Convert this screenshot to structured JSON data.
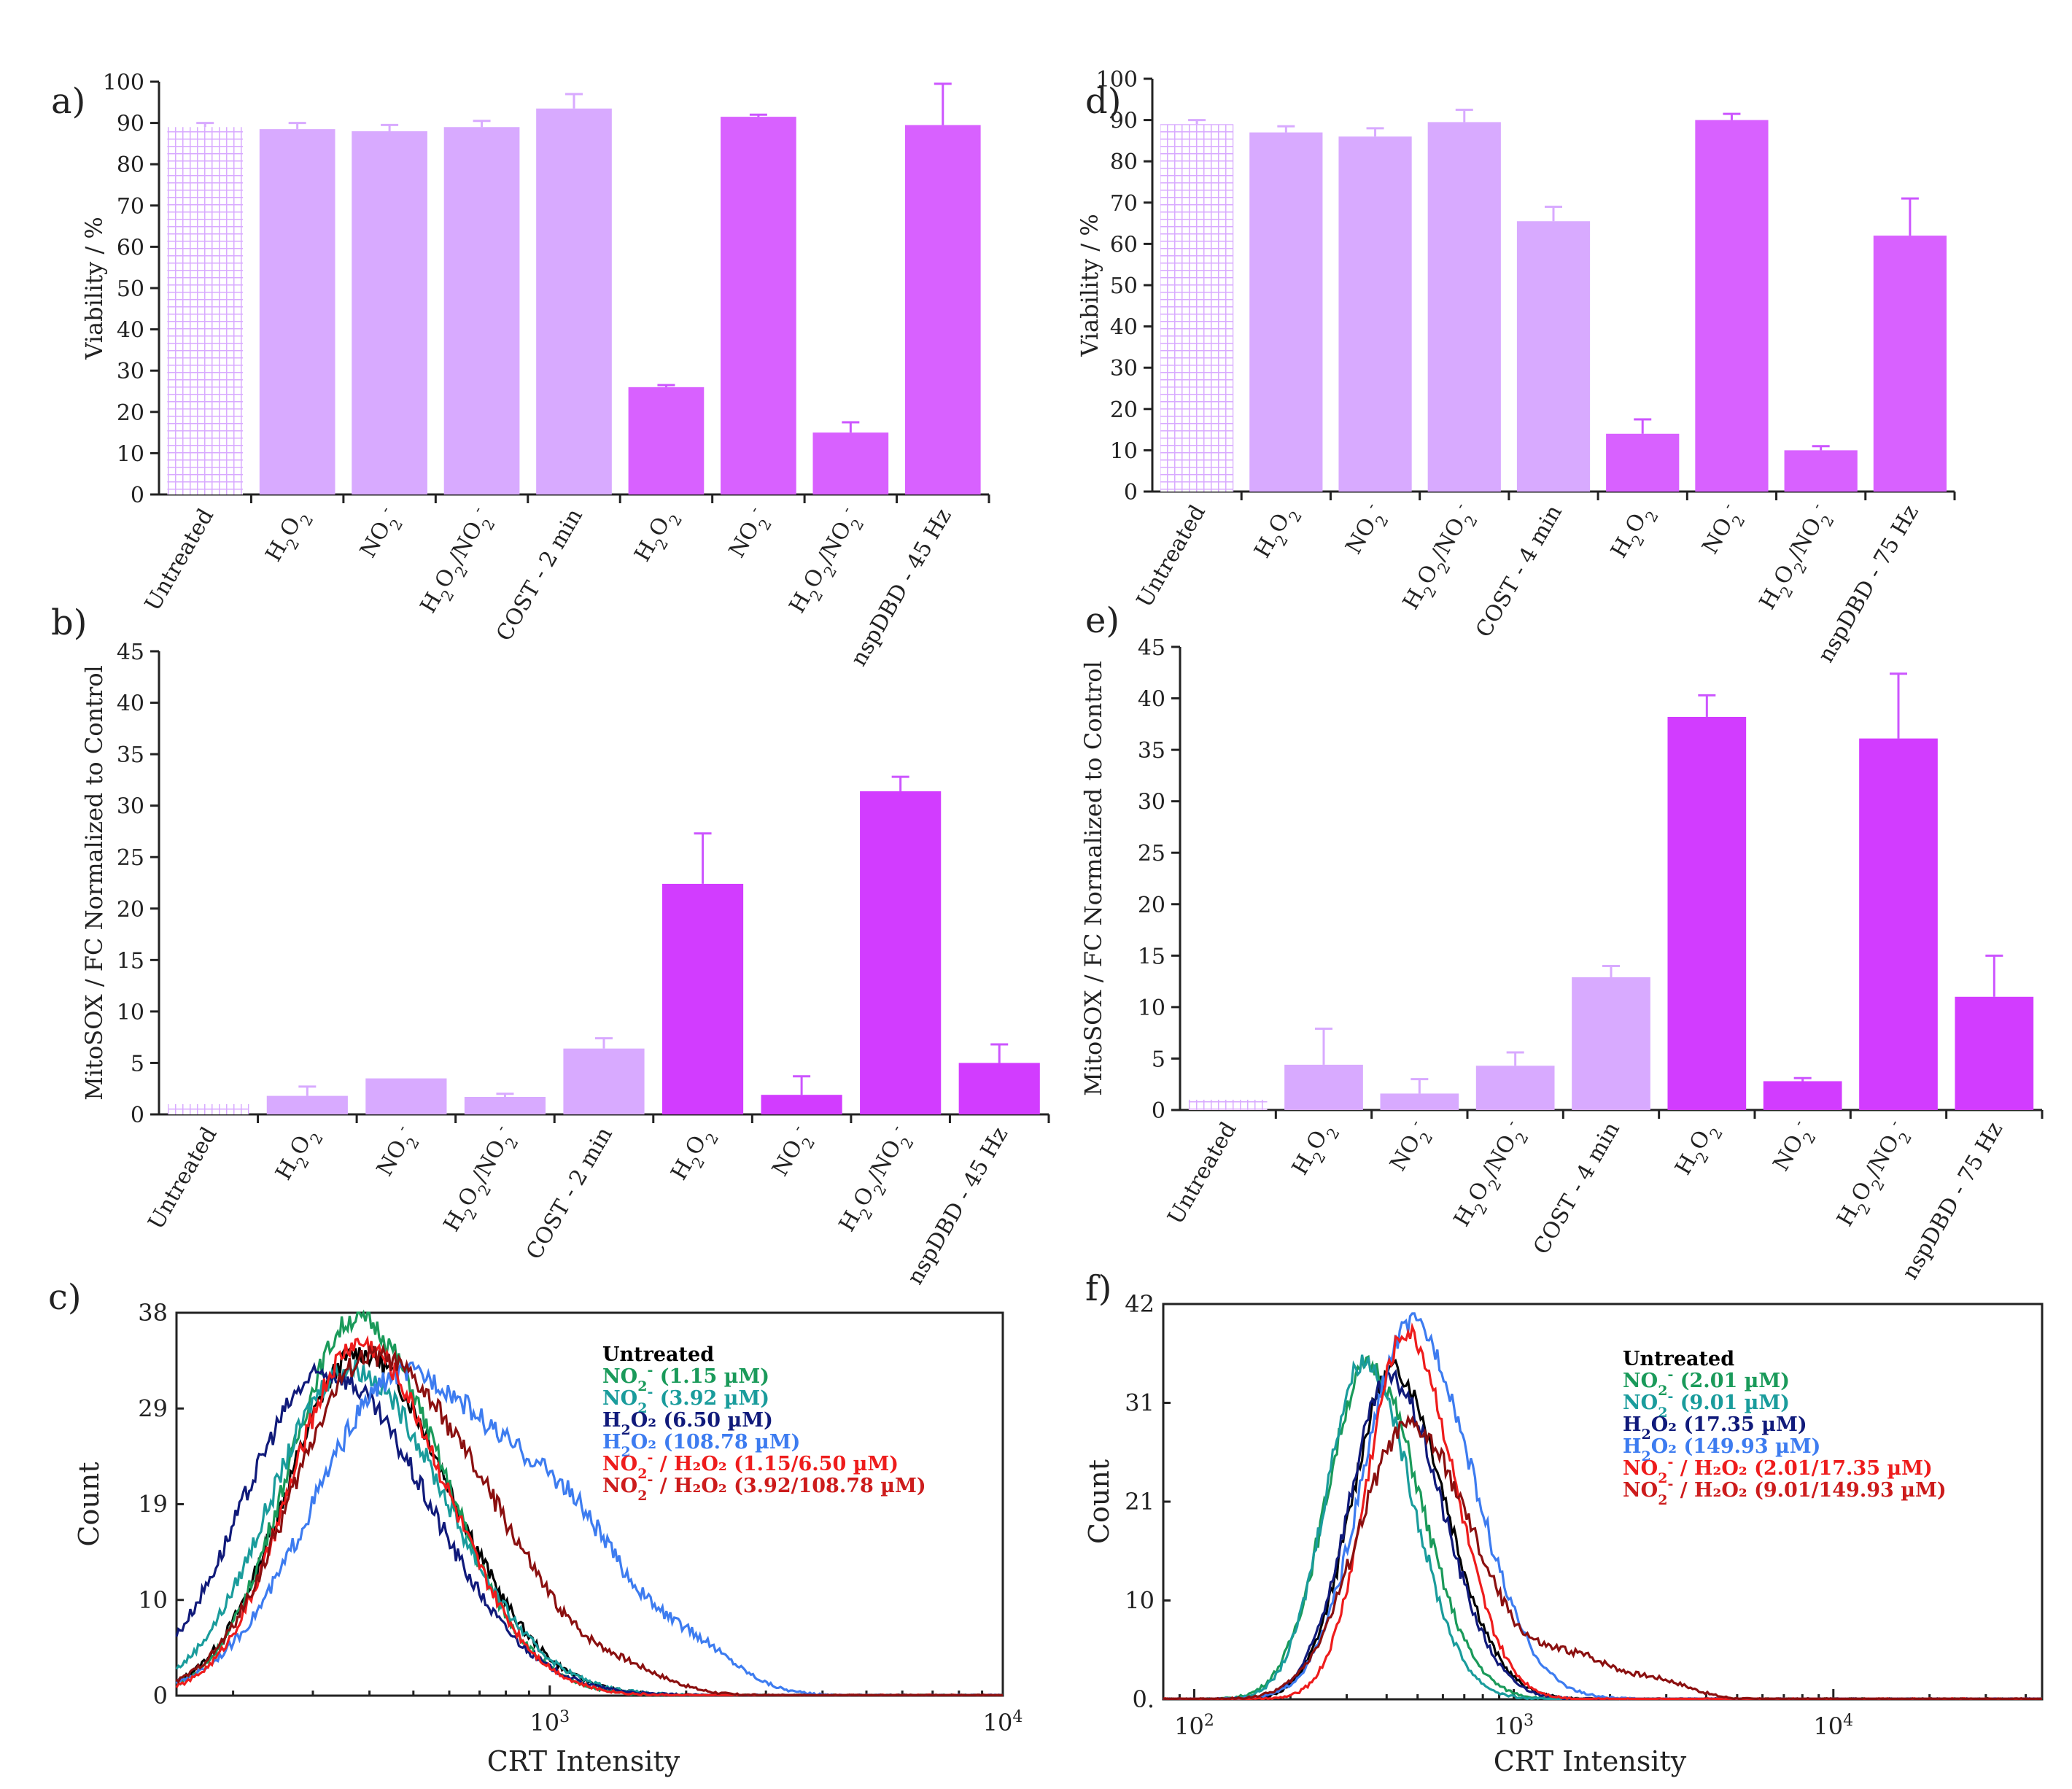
{
  "colors": {
    "bar_light": "#d8aaff",
    "bar_strong": "#d861ff",
    "bar_vivid": "#d23cff",
    "hatch_fill": "#ffffff",
    "error_bar": "#cc55ff",
    "untreated": "#000000",
    "no2_low": "#1a9a5a",
    "no2_high": "#1a9c9c",
    "h2o2_low": "#101a7a",
    "h2o2_high": "#3d7cf0",
    "combo_low": "#ee1c1c",
    "combo_high": "#cc1c1c",
    "combo_high_line": "#8b1010"
  },
  "chart_data": [
    {
      "panel": "a)",
      "type": "bar",
      "ylabel": "Viability / %",
      "ylim": [
        0,
        100
      ],
      "yticks": [
        "0",
        "10",
        "20",
        "30",
        "40",
        "50",
        "60",
        "70",
        "80",
        "90",
        "100"
      ],
      "categories": [
        "Untreated",
        "H2O2",
        "NO2-",
        "H2O2/NO2-",
        "COST - 2 min",
        "H2O2",
        "NO2-",
        "H2O2/NO2-",
        "nspDBD - 45 Hz"
      ],
      "values": [
        89,
        88.5,
        88,
        89,
        93.5,
        26,
        91.5,
        15,
        89.5
      ],
      "errors": [
        1,
        1.5,
        1.5,
        1.5,
        3.5,
        0.5,
        0.5,
        2.5,
        10
      ],
      "styles": [
        "hatch",
        "light",
        "light",
        "light",
        "light",
        "strong",
        "strong",
        "strong",
        "strong"
      ]
    },
    {
      "panel": "b)",
      "type": "bar",
      "ylabel": "MitoSOX / FC Normalized to Control",
      "ylim": [
        0,
        45
      ],
      "yticks": [
        "0",
        "5",
        "10",
        "15",
        "20",
        "25",
        "30",
        "35",
        "40",
        "45"
      ],
      "categories": [
        "Untreated",
        "H2O2",
        "NO2-",
        "H2O2/NO2-",
        "COST - 2 min",
        "H2O2",
        "NO2-",
        "H2O2/NO2-",
        "nspDBD - 45 Hz"
      ],
      "values": [
        1,
        1.8,
        3.5,
        1.7,
        6.4,
        22.4,
        1.9,
        31.4,
        5
      ],
      "errors": [
        0,
        0.9,
        0,
        0.3,
        1,
        4.9,
        1.8,
        1.4,
        1.8
      ],
      "styles": [
        "hatch",
        "light",
        "light",
        "light",
        "light",
        "vivid",
        "vivid",
        "vivid",
        "vivid"
      ]
    },
    {
      "panel": "d)",
      "type": "bar",
      "ylabel": "Viability / %",
      "ylim": [
        0,
        100
      ],
      "yticks": [
        "0",
        "10",
        "20",
        "30",
        "40",
        "50",
        "60",
        "70",
        "80",
        "90",
        "100"
      ],
      "categories": [
        "Untreated",
        "H2O2",
        "NO2-",
        "H2O2/NO2-",
        "COST - 4 min",
        "H2O2",
        "NO2-",
        "H2O2/NO2-",
        "nspDBD - 75 Hz"
      ],
      "values": [
        89,
        87,
        86,
        89.5,
        65.5,
        14,
        90,
        10,
        62
      ],
      "errors": [
        1,
        1.5,
        2,
        3,
        3.5,
        3.5,
        1.5,
        1,
        9
      ],
      "styles": [
        "hatch",
        "light",
        "light",
        "light",
        "light",
        "strong",
        "strong",
        "strong",
        "strong"
      ]
    },
    {
      "panel": "e)",
      "type": "bar",
      "ylabel": "MitoSOX / FC Normalized to Control",
      "ylim": [
        0,
        45
      ],
      "yticks": [
        "0",
        "5",
        "10",
        "15",
        "20",
        "25",
        "30",
        "35",
        "40",
        "45"
      ],
      "categories": [
        "Untreated",
        "H2O2",
        "NO2-",
        "H2O2/NO2-",
        "COST - 4 min",
        "H2O2",
        "NO2-",
        "H2O2/NO2-",
        "nspDBD - 75 Hz"
      ],
      "values": [
        1,
        4.4,
        1.6,
        4.3,
        12.9,
        38.2,
        2.8,
        36.1,
        11
      ],
      "errors": [
        0,
        3.5,
        1.4,
        1.3,
        1.1,
        2.1,
        0.3,
        6.3,
        4
      ],
      "styles": [
        "hatch",
        "light",
        "light",
        "light",
        "light",
        "vivid",
        "vivid",
        "vivid",
        "vivid"
      ]
    },
    {
      "panel": "c)",
      "type": "line",
      "xlabel": "CRT Intensity",
      "ylabel": "Count",
      "xscale": "log",
      "xlim": [
        150,
        10000
      ],
      "ylim": [
        0,
        38
      ],
      "yticks": [
        "0",
        "10",
        "19",
        "29",
        "38"
      ],
      "xticks": [
        {
          "base": "10",
          "exp": "3",
          "value": 1000
        },
        {
          "base": "10",
          "exp": "4",
          "value": 10000
        }
      ],
      "series": [
        {
          "name": "Untreated",
          "peak": 380,
          "height": 34,
          "spread": 0.16,
          "tail": 0,
          "tail_pos": 1000
        },
        {
          "name": "NO2- (1.15 µM)",
          "peak": 375,
          "height": 37.5,
          "spread": 0.15,
          "tail": 0,
          "tail_pos": 1000
        },
        {
          "name": "NO2- (3.92 µM)",
          "peak": 360,
          "height": 32.5,
          "spread": 0.17,
          "tail": 0,
          "tail_pos": 1000
        },
        {
          "name": "H2O2 (6.50 µM)",
          "peak": 320,
          "height": 32,
          "spread": 0.18,
          "tail": 0,
          "tail_pos": 1000
        },
        {
          "name": "H2O2 (108.78 µM)",
          "peak": 480,
          "height": 32,
          "spread": 0.2,
          "tail": 9,
          "tail_pos": 1150
        },
        {
          "name": "NO2- / H2O2 (1.15/6.50 µM)",
          "peak": 380,
          "height": 35,
          "spread": 0.15,
          "tail": 0,
          "tail_pos": 1000
        },
        {
          "name": "NO2- / H2O2 (3.92/108.78 µM)",
          "peak": 400,
          "height": 33.5,
          "spread": 0.17,
          "tail": 5,
          "tail_pos": 800
        }
      ]
    },
    {
      "panel": "f)",
      "type": "line",
      "xlabel": "CRT Intensity",
      "ylabel": "Count",
      "xscale": "log",
      "xlim": [
        80,
        45000
      ],
      "ylim": [
        0,
        42
      ],
      "yticks": [
        "0.",
        "10",
        "21",
        "31",
        "42"
      ],
      "xticks": [
        {
          "base": "10",
          "exp": "2",
          "value": 100
        },
        {
          "base": "10",
          "exp": "3",
          "value": 1000
        },
        {
          "base": "10",
          "exp": "4",
          "value": 10000
        }
      ],
      "series": [
        {
          "name": "Untreated",
          "peak": 420,
          "height": 35,
          "spread": 0.13,
          "tail": 0,
          "tail_pos": 1000
        },
        {
          "name": "NO2- (2.01 µM)",
          "peak": 350,
          "height": 35.5,
          "spread": 0.13,
          "tail": 0,
          "tail_pos": 1000
        },
        {
          "name": "NO2- (9.01 µM)",
          "peak": 340,
          "height": 36,
          "spread": 0.12,
          "tail": 0,
          "tail_pos": 1000
        },
        {
          "name": "H2O2 (17.35 µM)",
          "peak": 410,
          "height": 34,
          "spread": 0.13,
          "tail": 0,
          "tail_pos": 1000
        },
        {
          "name": "H2O2 (149.93 µM)",
          "peak": 480,
          "height": 40,
          "spread": 0.15,
          "tail": 0,
          "tail_pos": 1000
        },
        {
          "name": "NO2- / H2O2 (2.01/17.35 µM)",
          "peak": 460,
          "height": 39,
          "spread": 0.12,
          "tail": 0,
          "tail_pos": 1000
        },
        {
          "name": "NO2- / H2O2 (9.01/149.93 µM)",
          "peak": 470,
          "height": 29,
          "spread": 0.16,
          "tail": 4,
          "tail_pos": 1600
        }
      ]
    }
  ],
  "legend_c": [
    {
      "base": "Untreated",
      "sub": "",
      "sup": "",
      "rest": "",
      "color_key": "untreated"
    },
    {
      "base": "NO",
      "sub": "2",
      "sup": "-",
      "rest": " (1.15 µM)",
      "color_key": "no2_low"
    },
    {
      "base": "NO",
      "sub": "2",
      "sup": "-",
      "rest": " (3.92 µM)",
      "color_key": "no2_high"
    },
    {
      "base": "H",
      "sub": "2",
      "sup": "",
      "rest": "O₂ (6.50 µM)",
      "color_key": "h2o2_low"
    },
    {
      "base": "H",
      "sub": "2",
      "sup": "",
      "rest": "O₂ (108.78 µM)",
      "color_key": "h2o2_high"
    },
    {
      "base": "NO",
      "sub": "2",
      "sup": "-",
      "rest": " / H₂O₂ (1.15/6.50 µM)",
      "color_key": "combo_low"
    },
    {
      "base": "NO",
      "sub": "2",
      "sup": "-",
      "rest": " / H₂O₂ (3.92/108.78 µM)",
      "color_key": "combo_high"
    }
  ],
  "legend_f": [
    {
      "base": "Untreated",
      "sub": "",
      "sup": "",
      "rest": "",
      "color_key": "untreated"
    },
    {
      "base": "NO",
      "sub": "2",
      "sup": "-",
      "rest": " (2.01 µM)",
      "color_key": "no2_low"
    },
    {
      "base": "NO",
      "sub": "2",
      "sup": "-",
      "rest": " (9.01 µM)",
      "color_key": "no2_high"
    },
    {
      "base": "H",
      "sub": "2",
      "sup": "",
      "rest": "O₂ (17.35 µM)",
      "color_key": "h2o2_low"
    },
    {
      "base": "H",
      "sub": "2",
      "sup": "",
      "rest": "O₂ (149.93 µM)",
      "color_key": "h2o2_high"
    },
    {
      "base": "NO",
      "sub": "2",
      "sup": "-",
      "rest": " / H₂O₂ (2.01/17.35 µM)",
      "color_key": "combo_low"
    },
    {
      "base": "NO",
      "sub": "2",
      "sup": "-",
      "rest": " / H₂O₂ (9.01/149.93 µM)",
      "color_key": "combo_high"
    }
  ]
}
